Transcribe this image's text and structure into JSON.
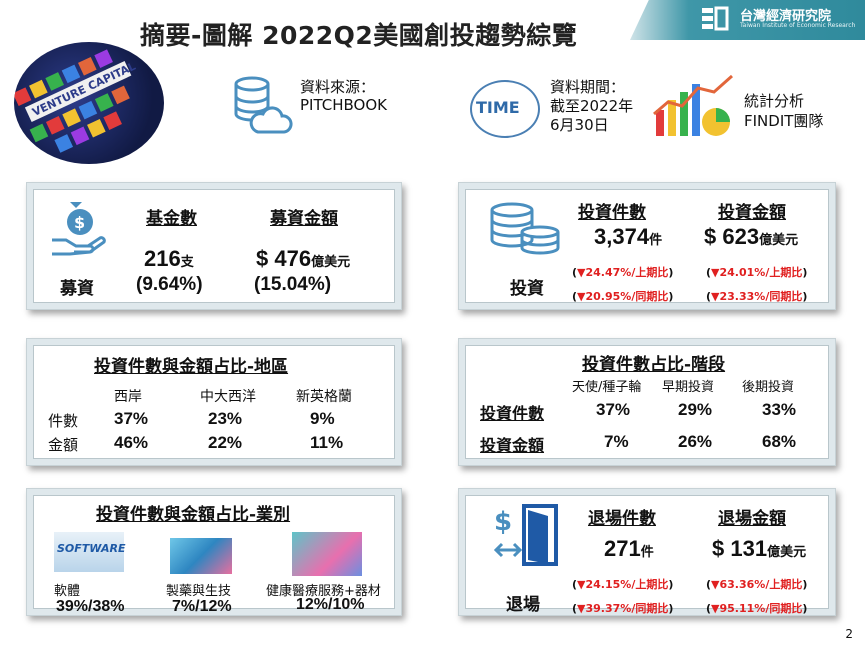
{
  "header": {
    "title": "摘要-圖解 2022Q2美國創投趨勢綜覽",
    "brand_name": "台灣經濟研究院",
    "brand_sub": "Taiwan Institute of Economic Research"
  },
  "info": {
    "source_label": "資料來源：",
    "source_value": "PITCHBOOK",
    "period_label": "資料期間：",
    "period_line2": "截至2022年",
    "period_line3": "6月30日",
    "time_badge": "TIME",
    "analysis_line1": "統計分析",
    "analysis_line2": "FINDIT團隊"
  },
  "fundraising": {
    "section": "募資",
    "h1": "基金數",
    "h2": "募資金額",
    "v1": "216",
    "u1": "支",
    "p1": "(9.64%)",
    "v2": "$ 476",
    "u2": "億美元",
    "p2": "(15.04%)"
  },
  "investment": {
    "section": "投資",
    "h1": "投資件數",
    "h2": "投資金額",
    "v1": "3,374",
    "u1": "件",
    "v2": "$ 623",
    "u2": "億美元",
    "c1a": "▼24.47%",
    "c1b": "▼20.95%",
    "c2a": "▼24.01%",
    "c2b": "▼23.33%",
    "qoq": "上期比",
    "yoy": "同期比"
  },
  "region": {
    "title": "投資件數與金額占比-地區",
    "cols": [
      "西岸",
      "中大西洋",
      "新英格蘭"
    ],
    "row1_label": "件數",
    "row1": [
      "37%",
      "23%",
      "9%"
    ],
    "row2_label": "金額",
    "row2": [
      "46%",
      "22%",
      "11%"
    ]
  },
  "stage": {
    "title": "投資件數占比-階段",
    "cols": [
      "天使/種子輪",
      "早期投資",
      "後期投資"
    ],
    "row1_label": "投資件數",
    "row1": [
      "37%",
      "29%",
      "33%"
    ],
    "row2_label": "投資金額",
    "row2": [
      "7%",
      "26%",
      "68%"
    ]
  },
  "industry": {
    "title": "投資件數與金額占比-業別",
    "software_img_text": "SOFTWARE",
    "items": [
      {
        "label": "軟體",
        "value": "39%/38%"
      },
      {
        "label": "製藥與生技",
        "value": "7%/12%"
      },
      {
        "label": "健康醫療服務+器材",
        "value": "12%/10%"
      }
    ]
  },
  "exit": {
    "section": "退場",
    "h1": "退場件數",
    "h2": "退場金額",
    "v1": "271",
    "u1": "件",
    "v2": "$ 131",
    "u2": "億美元",
    "c1a": "▼24.15%",
    "c1b": "▼39.37%",
    "c2a": "▼63.36%",
    "c2b": "▼95.11%",
    "qoq": "上期比",
    "yoy": "同期比"
  },
  "page_number": "2",
  "colors": {
    "accent": "#2f8a9c",
    "down": "#e02020",
    "panel": "#dfe8ec",
    "icon": "#4a8fbf"
  }
}
